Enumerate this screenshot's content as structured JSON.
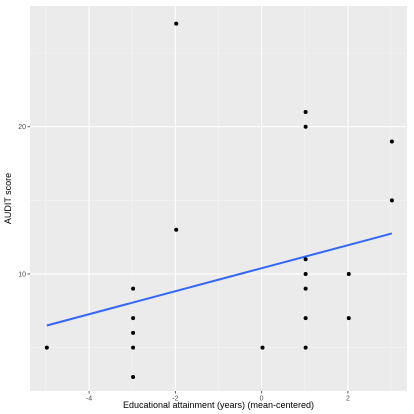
{
  "chart_data": {
    "type": "scatter",
    "title": "",
    "xlabel": "Educational attainment (years) (mean-centered)",
    "ylabel": "AUDIT score",
    "xlim": [
      -5.37,
      3.37
    ],
    "ylim": [
      2.05,
      28.2
    ],
    "x_ticks": [
      -4,
      -2,
      0,
      2
    ],
    "x_tick_labels": [
      "-4",
      "-2",
      "0",
      "2"
    ],
    "y_ticks": [
      10,
      20
    ],
    "y_tick_labels": [
      "10",
      "20"
    ],
    "grid": true,
    "legend": "none",
    "points": [
      {
        "x": -4.98,
        "y": 5
      },
      {
        "x": -2.98,
        "y": 9
      },
      {
        "x": -2.98,
        "y": 7
      },
      {
        "x": -2.98,
        "y": 6
      },
      {
        "x": -2.98,
        "y": 5
      },
      {
        "x": -2.98,
        "y": 3
      },
      {
        "x": -1.98,
        "y": 27
      },
      {
        "x": -1.98,
        "y": 13
      },
      {
        "x": 0.02,
        "y": 5
      },
      {
        "x": 1.02,
        "y": 21
      },
      {
        "x": 1.02,
        "y": 20
      },
      {
        "x": 1.02,
        "y": 11
      },
      {
        "x": 1.02,
        "y": 10
      },
      {
        "x": 1.02,
        "y": 9
      },
      {
        "x": 1.02,
        "y": 7
      },
      {
        "x": 1.02,
        "y": 5
      },
      {
        "x": 2.02,
        "y": 10
      },
      {
        "x": 2.02,
        "y": 7
      },
      {
        "x": 3.02,
        "y": 19
      },
      {
        "x": 3.02,
        "y": 15
      }
    ],
    "trend_line": {
      "x": [
        -4.98,
        3.02
      ],
      "y": [
        6.5,
        12.75
      ]
    },
    "colors": {
      "panel": "#ebebeb",
      "grid_major": "#ffffff",
      "grid_minor": "#f5f5f5",
      "points": "#000000",
      "trend_line": "#3366ff"
    }
  }
}
